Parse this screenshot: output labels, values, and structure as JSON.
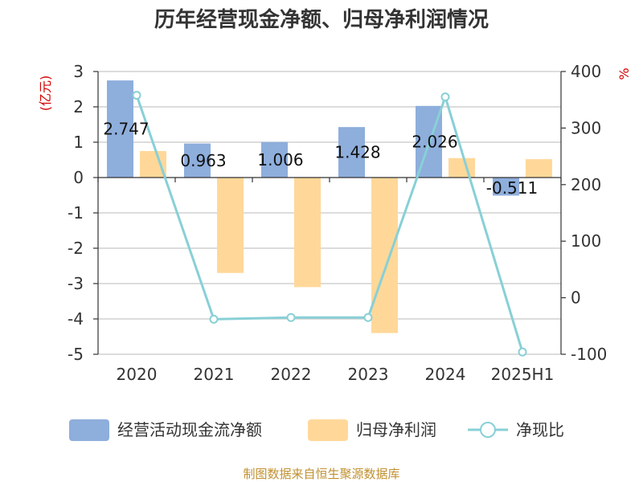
{
  "colors": {
    "bar1": "#8eaedc",
    "bar2": "#ffd899",
    "line": "#88d0d6",
    "axis_unit": "#d40000",
    "source": "#c09030",
    "grid": "#c8c8c8",
    "axis": "#333333"
  },
  "chart_data": {
    "type": "bar",
    "title": "历年经营现金净额、归母净利润情况",
    "categories": [
      "2020",
      "2021",
      "2022",
      "2023",
      "2024",
      "2025H1"
    ],
    "y_left": {
      "unit": "(亿元)",
      "min": -5,
      "max": 3,
      "ticks": [
        3,
        2,
        1,
        0,
        -1,
        -2,
        -3,
        -4,
        -5
      ]
    },
    "y_right": {
      "unit": "%",
      "min": -100,
      "max": 400,
      "ticks": [
        400,
        300,
        200,
        100,
        0,
        -100
      ]
    },
    "series": [
      {
        "name": "经营活动现金流净额",
        "type": "bar",
        "axis": "left",
        "values": [
          2.747,
          0.963,
          1.006,
          1.428,
          2.026,
          -0.511
        ],
        "labels": [
          "2.747",
          "0.963",
          "1.006",
          "1.428",
          "2.026",
          "-0.511"
        ]
      },
      {
        "name": "归母净利润",
        "type": "bar",
        "axis": "left",
        "values": [
          0.75,
          -2.7,
          -3.1,
          -4.4,
          0.55,
          0.52
        ]
      },
      {
        "name": "净现比",
        "type": "line",
        "axis": "right",
        "values": [
          358,
          -38,
          -35,
          -35,
          355,
          -96
        ]
      }
    ],
    "legend_position": "bottom",
    "grid": true
  },
  "source_text": "制图数据来自恒生聚源数据库"
}
